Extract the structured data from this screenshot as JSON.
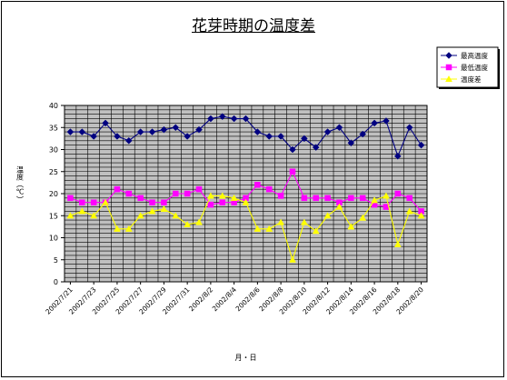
{
  "chart_data": {
    "type": "line",
    "title": "花芽時期の温度差",
    "xlabel": "月・日",
    "ylabel": "温度（℃）",
    "ylim": [
      0,
      40
    ],
    "yticks": [
      0,
      5,
      10,
      15,
      20,
      25,
      30,
      35,
      40
    ],
    "grid": true,
    "legend_position": "top-right",
    "x_tick_labels": [
      "2002/7/21",
      "2002/7/23",
      "2002/7/25",
      "2002/7/27",
      "2002/7/29",
      "2002/7/31",
      "2002/8/2",
      "2002/8/4",
      "2002/8/6",
      "2002/8/8",
      "2002/8/10",
      "2002/8/12",
      "2002/8/14",
      "2002/8/16",
      "2002/8/18",
      "2002/8/20"
    ],
    "x": [
      "2002/7/21",
      "2002/7/22",
      "2002/7/23",
      "2002/7/24",
      "2002/7/25",
      "2002/7/26",
      "2002/7/27",
      "2002/7/28",
      "2002/7/29",
      "2002/7/30",
      "2002/7/31",
      "2002/8/1",
      "2002/8/2",
      "2002/8/3",
      "2002/8/4",
      "2002/8/5",
      "2002/8/6",
      "2002/8/7",
      "2002/8/8",
      "2002/8/9",
      "2002/8/10",
      "2002/8/11",
      "2002/8/12",
      "2002/8/13",
      "2002/8/14",
      "2002/8/15",
      "2002/8/16",
      "2002/8/17",
      "2002/8/18",
      "2002/8/19",
      "2002/8/20"
    ],
    "series": [
      {
        "name": "最高温度",
        "color": "#000080",
        "marker": "diamond",
        "values": [
          34,
          34,
          33,
          36,
          33,
          32,
          34,
          34,
          34.5,
          35,
          33,
          34.5,
          37,
          37.5,
          37,
          37,
          34,
          33,
          33,
          30,
          32.5,
          30.5,
          34,
          35,
          31.5,
          33.5,
          36,
          36.5,
          28.5,
          35,
          31
        ]
      },
      {
        "name": "最低温度",
        "color": "#ff00ff",
        "marker": "square",
        "values": [
          19,
          18,
          18,
          18,
          21,
          20,
          19,
          18,
          18,
          20,
          20,
          21,
          17.5,
          18,
          18,
          19,
          22,
          21,
          19.5,
          25,
          19,
          19,
          19,
          18,
          19,
          19,
          17.5,
          17,
          20,
          19,
          16
        ]
      },
      {
        "name": "温度差",
        "color": "#ffff00",
        "marker": "triangle",
        "values": [
          15,
          16,
          15,
          18,
          12,
          12,
          15,
          16,
          16.5,
          15,
          13,
          13.5,
          19.5,
          19.5,
          19,
          18,
          12,
          12,
          13.5,
          5,
          13.5,
          11.5,
          15,
          17,
          12.5,
          14.5,
          18.5,
          19.5,
          8.5,
          16,
          15
        ]
      }
    ]
  }
}
